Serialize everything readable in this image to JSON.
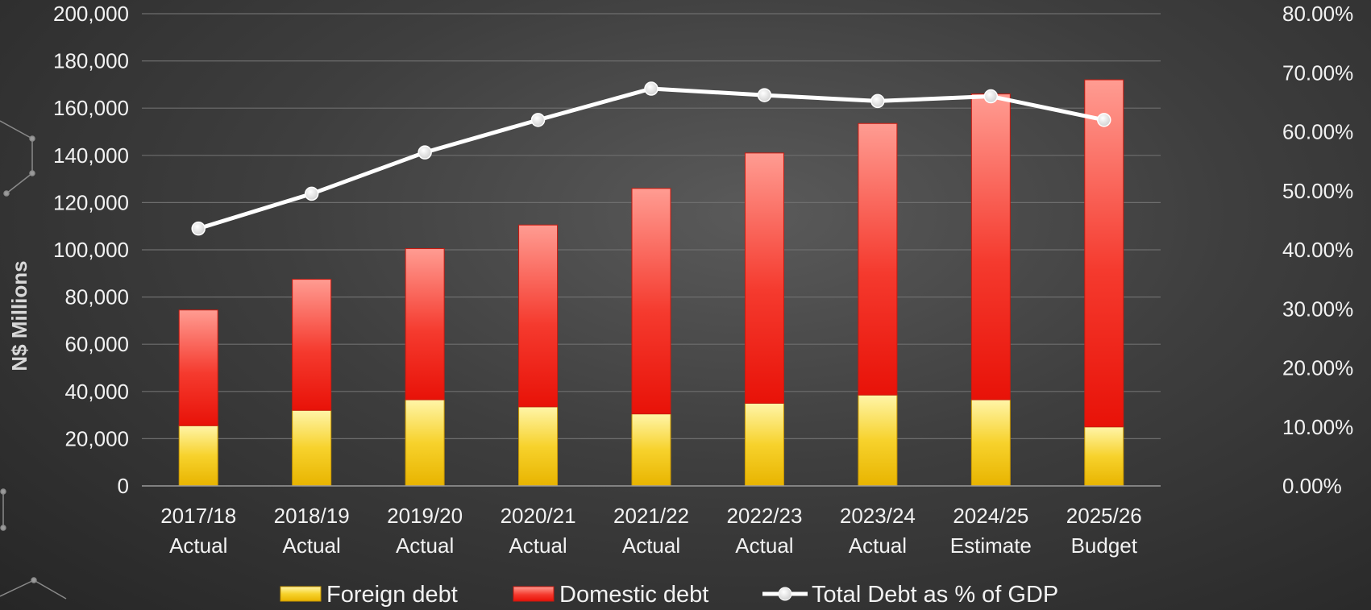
{
  "chart_data": {
    "type": "bar",
    "stacked": true,
    "categories": [
      [
        "2017/18",
        "Actual"
      ],
      [
        "2018/19",
        "Actual"
      ],
      [
        "2019/20",
        "Actual"
      ],
      [
        "2020/21",
        "Actual"
      ],
      [
        "2021/22",
        "Actual"
      ],
      [
        "2022/23",
        "Actual"
      ],
      [
        "2023/24",
        "Actual"
      ],
      [
        "2024/25",
        "Estimate"
      ],
      [
        "2025/26",
        "Budget"
      ]
    ],
    "series": [
      {
        "name": "Foreign debt",
        "type": "bar",
        "axis": "left",
        "color": "#f5c518",
        "values": [
          25500,
          32000,
          36500,
          33500,
          30500,
          35000,
          38500,
          36500,
          25000
        ]
      },
      {
        "name": "Domestic debt",
        "type": "bar",
        "axis": "left",
        "color": "#f22a1e",
        "values": [
          49000,
          55500,
          64000,
          77000,
          95500,
          106000,
          115000,
          129500,
          147000
        ]
      },
      {
        "name": "Total Debt as % of GDP",
        "type": "line",
        "axis": "right",
        "color": "#ffffff",
        "values": [
          43.6,
          49.5,
          56.5,
          62.0,
          67.3,
          66.2,
          65.2,
          66.0,
          62.0
        ]
      }
    ],
    "title": "",
    "xlabel": "",
    "ylabel": "N$ Millions",
    "ylim": [
      0,
      200000
    ],
    "yticks": [
      "0",
      "20,000",
      "40,000",
      "60,000",
      "80,000",
      "100,000",
      "120,000",
      "140,000",
      "160,000",
      "180,000",
      "200,000"
    ],
    "y2lim": [
      0,
      80
    ],
    "y2ticks": [
      "0.00%",
      "10.00%",
      "20.00%",
      "30.00%",
      "40.00%",
      "50.00%",
      "60.00%",
      "70.00%",
      "80.00%"
    ],
    "grid": true,
    "legend_position": "bottom"
  }
}
